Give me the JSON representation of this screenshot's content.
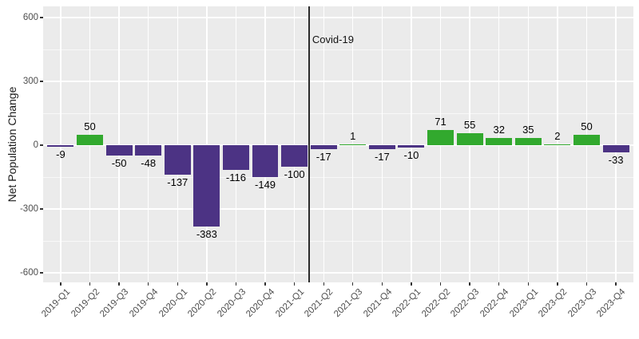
{
  "chart_data": {
    "type": "bar",
    "title": "",
    "xlabel": "",
    "ylabel": "Net Population Change",
    "categories": [
      "2019-Q1",
      "2019-Q2",
      "2019-Q3",
      "2019-Q4",
      "2020-Q1",
      "2020-Q2",
      "2020-Q3",
      "2020-Q4",
      "2021-Q1",
      "2021-Q2",
      "2021-Q3",
      "2021-Q4",
      "2022-Q1",
      "2022-Q2",
      "2022-Q3",
      "2022-Q4",
      "2023-Q1",
      "2023-Q2",
      "2023-Q3",
      "2023-Q4"
    ],
    "values": [
      -9,
      50,
      -50,
      -48,
      -137,
      -383,
      -116,
      -149,
      -100,
      -17,
      1,
      -17,
      -10,
      71,
      55,
      32,
      35,
      2,
      50,
      -33
    ],
    "value_labels": [
      "-9",
      "50",
      "-50",
      "-48",
      "-137",
      "-383",
      "-116",
      "-149",
      "-100",
      "-17",
      "1",
      "-17",
      "-10",
      "71",
      "55",
      "32",
      "35",
      "2",
      "50",
      "-33"
    ],
    "y_axis": {
      "major_ticks": [
        600,
        300,
        0,
        -300,
        -600
      ],
      "minor_ticks": [
        450,
        150,
        -150,
        -450
      ],
      "range": [
        -650,
        655
      ]
    },
    "annotation": {
      "label": "Covid-19",
      "line_after_category": "2021-Q1"
    },
    "legend": "none",
    "grid": true,
    "colors": {
      "positive_bar": "#32A92E",
      "negative_bar": "#4C3384",
      "panel_background": "#EBEBEB",
      "grid_major": "#FFFFFF",
      "annotation_line": "#2B2B2B",
      "axis_tick_text": "#4D4D4D",
      "value_text": "#000000"
    }
  }
}
